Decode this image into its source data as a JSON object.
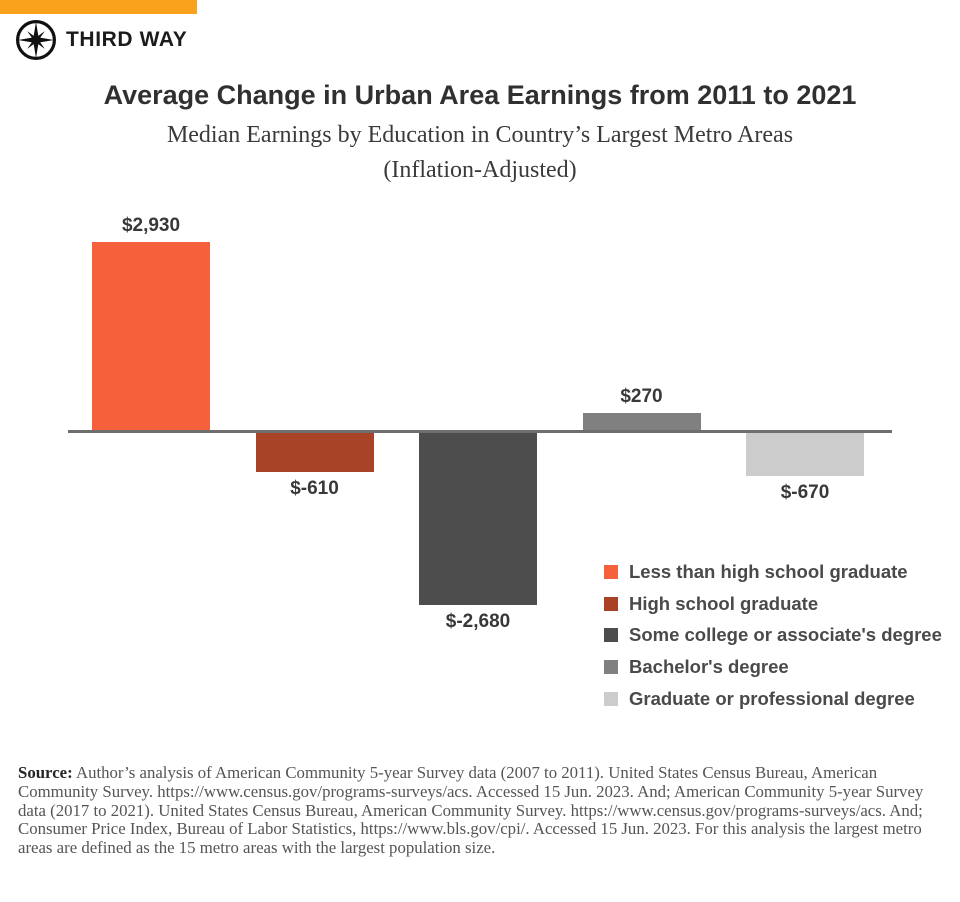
{
  "brand": {
    "name": "THIRD WAY",
    "banner_color": "#FAA21B",
    "logo_color": "#111111"
  },
  "header": {
    "title": "Average Change in Urban Area Earnings from 2011 to 2021",
    "subtitle_line1": "Median Earnings by Education in Country’s Largest Metro Areas",
    "subtitle_line2": "(Inflation-Adjusted)"
  },
  "chart_data": {
    "type": "bar",
    "title": "Average Change in Urban Area Earnings from 2011 to 2021",
    "subtitle": "Median Earnings by Education in Country’s Largest Metro Areas (Inflation-Adjusted)",
    "categories": [
      "Less than high school graduate",
      "High school graduate",
      "Some college or associate's degree",
      "Bachelor's degree",
      "Graduate or professional degree"
    ],
    "values": [
      2930,
      -610,
      -2680,
      270,
      -670
    ],
    "value_labels": [
      "$2,930",
      "$-610",
      "$-2,680",
      "$270",
      "$-670"
    ],
    "colors": [
      "#F4613A",
      "#A84327",
      "#4D4D4D",
      "#808080",
      "#CCCCCC"
    ],
    "baseline_color": "#6E6E6E",
    "ylim": [
      -2680,
      2930
    ],
    "grid": false,
    "y_axis_hidden": true,
    "x_tick_labels_hidden": true,
    "legend_position": "bottom-right"
  },
  "legend": {
    "items": [
      {
        "label": "Less than high school graduate",
        "color": "#F4613A"
      },
      {
        "label": "High school graduate",
        "color": "#A84327"
      },
      {
        "label": "Some college or associate's degree",
        "color": "#4D4D4D"
      },
      {
        "label": "Bachelor's degree",
        "color": "#808080"
      },
      {
        "label": "Graduate or professional degree",
        "color": "#CCCCCC"
      }
    ]
  },
  "source": {
    "label": "Source:",
    "text": " Author’s analysis of American Community 5-year Survey data (2007 to 2011). United States Census Bureau, American Community Survey.  https://www.census.gov/programs-surveys/acs. Accessed 15 Jun. 2023. And; American Community 5-year Survey data (2017 to 2021). United States Census Bureau, American Community Survey. https://www.census.gov/programs-surveys/acs. And; Consumer Price Index, Bureau of Labor Statistics, https://www.bls.gov/cpi/. Accessed 15 Jun. 2023. For this analysis the largest metro areas are defined as the 15 metro areas with the largest population size."
  }
}
